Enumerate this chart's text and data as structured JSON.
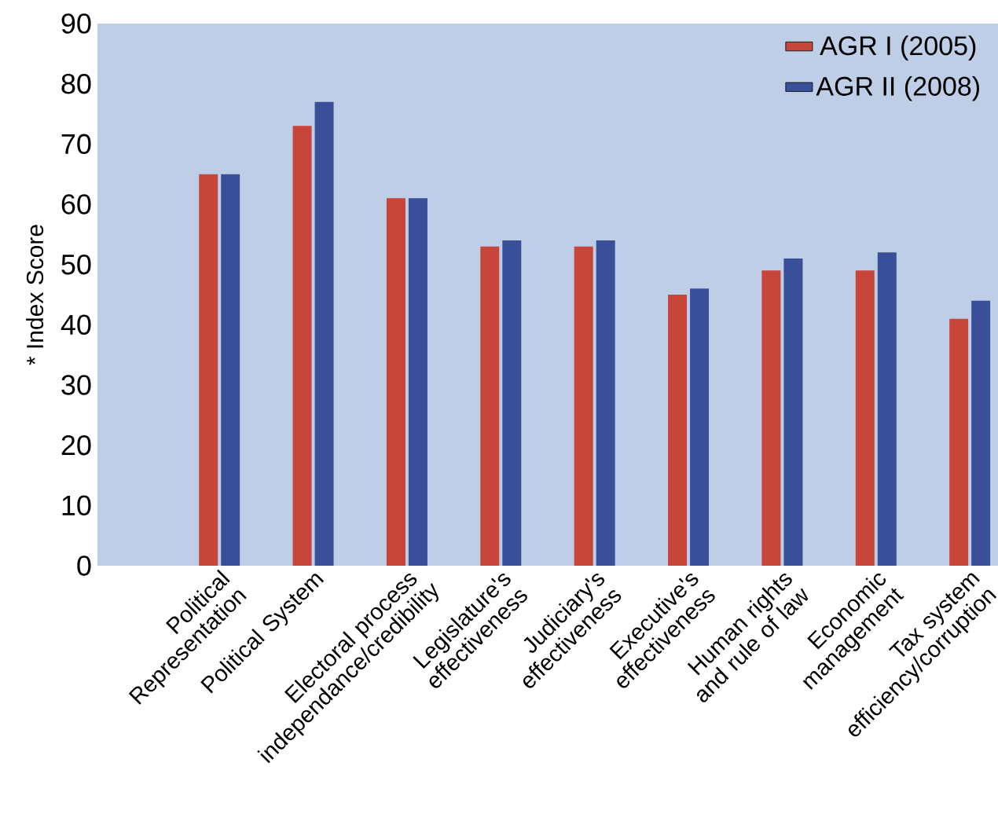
{
  "chart_data": {
    "type": "bar",
    "ylabel": "* Index Score",
    "categories": [
      "Political Representation",
      "Political System",
      "Electoral process independance/credibility",
      "Legislature's effectiveness",
      "Judiciary's effectiveness",
      "Executive's effectiveness",
      "Human rights and rule of law",
      "Economic management",
      "Tax system efficiency/corruption"
    ],
    "series": [
      {
        "name": "AGR I (2005)",
        "color": "#c8453a",
        "values": [
          65,
          73,
          61,
          53,
          53,
          45,
          49,
          49,
          41
        ]
      },
      {
        "name": "AGR II (2008)",
        "color": "#3a4f9a",
        "values": [
          65,
          77,
          61,
          54,
          54,
          46,
          51,
          52,
          44
        ]
      }
    ],
    "ylim": [
      0,
      90
    ],
    "yticks": [
      0,
      10,
      20,
      30,
      40,
      50,
      60,
      70,
      80,
      90
    ],
    "grid": false,
    "legend": "top right"
  }
}
